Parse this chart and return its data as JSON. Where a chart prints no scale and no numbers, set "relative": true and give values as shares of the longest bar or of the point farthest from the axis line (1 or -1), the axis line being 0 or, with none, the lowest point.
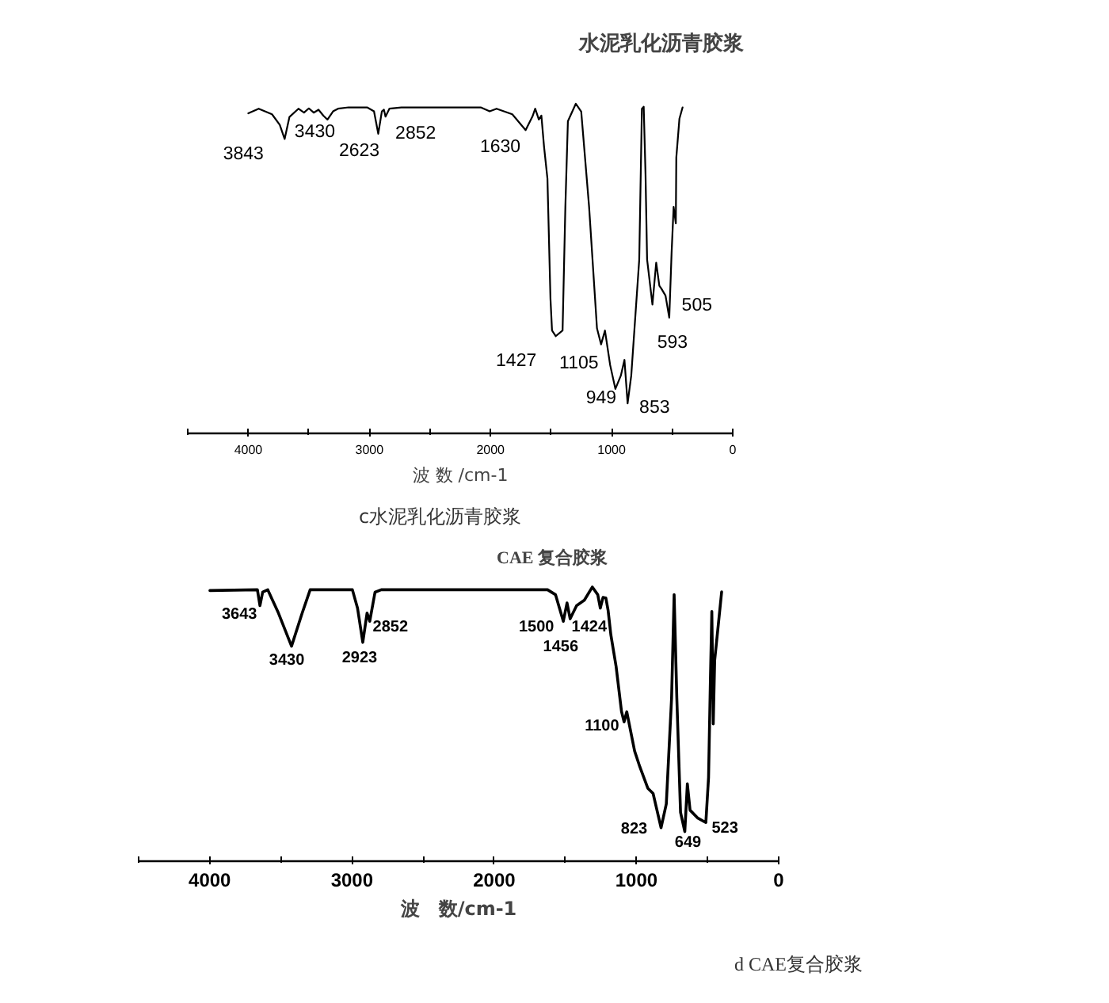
{
  "chart_data": [
    {
      "type": "line",
      "relative": true,
      "title": "水泥乳化沥青胶浆",
      "xlabel": "波 数 /cm-1",
      "xlim": [
        4500,
        0
      ],
      "xticks": [
        {
          "value": 4500,
          "label": null
        },
        4000,
        {
          "value": 3500,
          "label": null
        },
        3000,
        {
          "value": 2500,
          "label": null
        },
        2000,
        {
          "value": 1500,
          "label": null
        },
        1000,
        {
          "value": 500,
          "label": null
        },
        0
      ],
      "x": [
        4000,
        3914,
        3804,
        3740,
        3700,
        3660,
        3586,
        3540,
        3500,
        3460,
        3420,
        3380,
        3346,
        3300,
        3259,
        3172,
        3019,
        2962,
        2927,
        2897,
        2880,
        2867,
        2835,
        2736,
        2081,
        2007,
        1950,
        1820,
        1710,
        1653,
        1631,
        1601,
        1580,
        1558,
        1530,
        1505,
        1492,
        1461,
        1405,
        1382,
        1361,
        1296,
        1251,
        1186,
        1121,
        1087,
        1055,
        1012,
        969,
        924,
        894,
        868,
        838,
        772,
        750,
        735,
        720,
        707,
        663,
        632,
        606,
        589,
        555,
        524,
        505,
        488,
        470,
        466,
        440,
        414
      ],
      "series": [
        {
          "color": "#000000",
          "values": [
            0.971,
            0.985,
            0.968,
            0.936,
            0.893,
            0.96,
            0.985,
            0.973,
            0.986,
            0.973,
            0.982,
            0.964,
            0.952,
            0.977,
            0.985,
            0.989,
            0.989,
            0.977,
            0.909,
            0.977,
            0.982,
            0.961,
            0.985,
            0.989,
            0.989,
            0.977,
            0.985,
            0.968,
            0.92,
            0.962,
            0.985,
            0.952,
            0.964,
            0.87,
            0.773,
            0.409,
            0.312,
            0.295,
            0.312,
            0.687,
            0.947,
            1.0,
            0.976,
            0.687,
            0.319,
            0.27,
            0.312,
            0.207,
            0.135,
            0.175,
            0.223,
            0.091,
            0.175,
            0.527,
            0.985,
            0.991,
            0.784,
            0.527,
            0.391,
            0.518,
            0.448,
            0.439,
            0.418,
            0.351,
            0.546,
            0.687,
            0.637,
            0.836,
            0.955,
            0.989
          ]
        }
      ],
      "annotations": [
        {
          "text": "3843",
          "x": 3700,
          "y": 0.893
        },
        {
          "text": "3430",
          "x": 3346,
          "y": 0.952
        },
        {
          "text": "2623",
          "x": 2927,
          "y": 0.909
        },
        {
          "text": "2852",
          "x": 2867,
          "y": 0.961
        },
        {
          "text": "1630",
          "x": 1710,
          "y": 0.92
        },
        {
          "text": "1427",
          "x": 1461,
          "y": 0.295
        },
        {
          "text": "1105",
          "x": 1087,
          "y": 0.27
        },
        {
          "text": "949",
          "x": 969,
          "y": 0.135
        },
        {
          "text": "853",
          "x": 868,
          "y": 0.091
        },
        {
          "text": "593",
          "x": 524,
          "y": 0.351
        },
        {
          "text": "505",
          "x": 505,
          "y": 0.546
        },
        "c水泥乳化沥青胶浆"
      ]
    },
    {
      "type": "line",
      "relative": true,
      "title": "CAE 复合胶浆",
      "xlabel": "波　数/cm-1",
      "xlim": [
        4500,
        0
      ],
      "xticks": [
        {
          "value": 4500,
          "label": null
        },
        4000,
        {
          "value": 3500,
          "label": null
        },
        3000,
        {
          "value": 2500,
          "label": null
        },
        2000,
        {
          "value": 1500,
          "label": null
        },
        1000,
        {
          "value": 500,
          "label": null
        },
        0
      ],
      "x": [
        3999,
        3665,
        3647,
        3628,
        3592,
        3517,
        3425,
        3350,
        3294,
        2997,
        2961,
        2924,
        2894,
        2875,
        2838,
        2794,
        2015,
        1625,
        1569,
        1514,
        1488,
        1466,
        1421,
        1366,
        1310,
        1272,
        1254,
        1235,
        1215,
        1199,
        1180,
        1143,
        1105,
        1087,
        1068,
        1013,
        976,
        920,
        883,
        827,
        790,
        753,
        735,
        716,
        690,
        660,
        642,
        623,
        568,
        512,
        493,
        480,
        470,
        460,
        450,
        401
      ],
      "series": [
        {
          "color": "#000000",
          "values": [
            0.987,
            0.99,
            0.932,
            0.981,
            0.99,
            0.905,
            0.784,
            0.905,
            0.99,
            0.99,
            0.923,
            0.798,
            0.905,
            0.875,
            0.981,
            0.99,
            0.99,
            0.99,
            0.972,
            0.875,
            0.942,
            0.884,
            0.932,
            0.952,
            1.0,
            0.972,
            0.923,
            0.962,
            0.96,
            0.914,
            0.826,
            0.71,
            0.546,
            0.508,
            0.545,
            0.402,
            0.344,
            0.266,
            0.247,
            0.122,
            0.209,
            0.594,
            0.972,
            0.594,
            0.178,
            0.108,
            0.282,
            0.186,
            0.157,
            0.141,
            0.305,
            0.661,
            0.911,
            0.501,
            0.732,
            0.982
          ]
        }
      ],
      "annotations": [
        {
          "text": "3643",
          "x": 3647,
          "y": 0.932
        },
        {
          "text": "3430",
          "x": 3425,
          "y": 0.784
        },
        {
          "text": "2923",
          "x": 2924,
          "y": 0.798
        },
        {
          "text": "2852",
          "x": 2875,
          "y": 0.875
        },
        {
          "text": "1500",
          "x": 1514,
          "y": 0.875
        },
        {
          "text": "1456",
          "x": 1466,
          "y": 0.884
        },
        {
          "text": "1424",
          "x": 1421,
          "y": 0.932
        },
        {
          "text": "1100",
          "x": 1087,
          "y": 0.508
        },
        {
          "text": "823",
          "x": 827,
          "y": 0.122
        },
        {
          "text": "649",
          "x": 660,
          "y": 0.108
        },
        {
          "text": "523",
          "x": 512,
          "y": 0.141
        },
        "d CAE复合胶浆"
      ]
    }
  ]
}
